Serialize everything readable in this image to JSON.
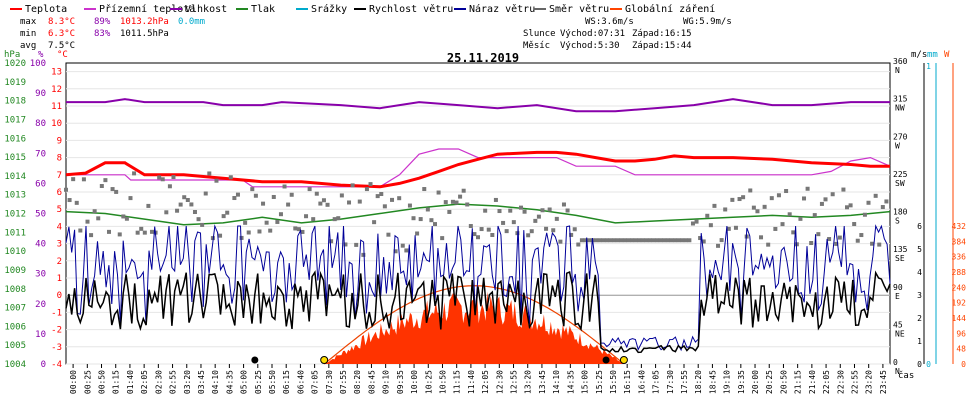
{
  "chart_data": {
    "type": "line",
    "title": "25.11.2019",
    "x_axis_label": "čas",
    "legend": [
      {
        "name": "Teplota",
        "color": "#ff0000"
      },
      {
        "name": "Přízemní teplota",
        "color": "#cc33cc"
      },
      {
        "name": "Vlhkost",
        "color": "#8800aa"
      },
      {
        "name": "Tlak",
        "color": "#228822"
      },
      {
        "name": "Srážky",
        "color": "#00aacc"
      },
      {
        "name": "Rychlost větru",
        "color": "#000000"
      },
      {
        "name": "Náraz větru",
        "color": "#000099"
      },
      {
        "name": "Směr větru",
        "color": "#666666"
      },
      {
        "name": "Globální záření",
        "color": "#ff4400"
      }
    ],
    "stats": {
      "max": {
        "label": "max",
        "temp": "8.3°C",
        "hum": "89%",
        "press": "1013.2hPa",
        "rain": "0.0mm"
      },
      "min": {
        "label": "min",
        "temp": "6.3°C",
        "hum": "83%",
        "press": "1011.5hPa"
      },
      "avg": {
        "label": "avg",
        "temp": "7.5°C"
      }
    },
    "wind_info": {
      "ws": "WS:3.6m/s",
      "wg": "WG:5.9m/s"
    },
    "sun": {
      "label": "Slunce",
      "rise": "Východ:07:31",
      "set": "Západ:16:15"
    },
    "moon": {
      "label": "Měsíc",
      "rise": "Východ:5:30",
      "set": "Západ:15:44"
    },
    "axis_units": {
      "hpa": "hPa",
      "pct": "%",
      "degc": "°C",
      "ms": "m/s",
      "mm": "mm",
      "w": "W"
    },
    "hpa_ticks": [
      "1020",
      "1019",
      "1018",
      "1017",
      "1016",
      "1015",
      "1014",
      "1013",
      "1012",
      "1011",
      "1010",
      "1009",
      "1008",
      "1007",
      "1006",
      "1005",
      "1004"
    ],
    "pct_ticks": [
      "100",
      "90",
      "80",
      "70",
      "60",
      "50",
      "40",
      "30",
      "20",
      "10",
      "0"
    ],
    "temp_ticks": [
      "13",
      "12",
      "11",
      "10",
      "9",
      "8",
      "7",
      "6",
      "5",
      "4",
      "3",
      "2",
      "1",
      "0",
      "-1",
      "-2",
      "-3",
      "-4"
    ],
    "wind_dir_ticks": [
      {
        "deg": "360",
        "dir": "N"
      },
      {
        "deg": "315",
        "dir": "NW"
      },
      {
        "deg": "270",
        "dir": "W"
      },
      {
        "deg": "225",
        "dir": "SW"
      },
      {
        "deg": "180",
        "dir": "S"
      },
      {
        "deg": "135",
        "dir": "SE"
      },
      {
        "deg": "90",
        "dir": "E"
      },
      {
        "deg": "45",
        "dir": "NE"
      },
      {
        "deg": "0",
        "dir": "N"
      }
    ],
    "ms_ticks": [
      "6",
      "5",
      "4",
      "3",
      "2",
      "1",
      "0"
    ],
    "mm_ticks": [
      "1",
      "0"
    ],
    "w_ticks": [
      "432",
      "384",
      "336",
      "288",
      "240",
      "192",
      "144",
      "96",
      "48",
      "0"
    ],
    "x_ticks": [
      "00:00",
      "00:25",
      "00:50",
      "01:15",
      "01:40",
      "02:05",
      "02:30",
      "02:55",
      "03:20",
      "03:45",
      "04:10",
      "04:35",
      "05:00",
      "05:25",
      "05:50",
      "06:15",
      "06:40",
      "07:05",
      "07:30",
      "07:55",
      "08:20",
      "08:45",
      "09:10",
      "09:35",
      "10:00",
      "10:25",
      "10:50",
      "11:15",
      "11:40",
      "12:05",
      "12:30",
      "12:55",
      "13:20",
      "13:45",
      "14:10",
      "14:35",
      "15:00",
      "15:25",
      "15:50",
      "16:15",
      "16:40",
      "17:05",
      "17:30",
      "17:55",
      "18:20",
      "18:45",
      "19:10",
      "19:35",
      "20:00",
      "20:25",
      "20:50",
      "21:15",
      "21:40",
      "22:05",
      "22:30",
      "22:55",
      "23:20",
      "23:45"
    ],
    "series": {
      "teplota": [
        [
          0,
          7
        ],
        [
          1,
          7.1
        ],
        [
          2,
          7.7
        ],
        [
          3,
          7.7
        ],
        [
          4,
          7.0
        ],
        [
          6,
          7.0
        ],
        [
          8,
          6.8
        ],
        [
          10,
          6.6
        ],
        [
          12,
          6.6
        ],
        [
          14,
          6.4
        ],
        [
          16,
          6.3
        ],
        [
          17,
          6.5
        ],
        [
          18,
          6.8
        ],
        [
          19,
          7.2
        ],
        [
          20,
          7.6
        ],
        [
          21,
          7.9
        ],
        [
          22,
          8.2
        ],
        [
          24,
          8.3
        ],
        [
          25,
          8.3
        ],
        [
          26,
          8.2
        ],
        [
          27,
          8.0
        ],
        [
          28,
          7.8
        ],
        [
          29,
          7.8
        ],
        [
          30,
          7.9
        ],
        [
          31,
          8.1
        ],
        [
          32,
          8.0
        ],
        [
          34,
          8.0
        ],
        [
          36,
          7.9
        ],
        [
          38,
          7.7
        ],
        [
          40,
          7.6
        ],
        [
          41,
          7.5
        ],
        [
          42,
          7.5
        ]
      ],
      "prizemni": [
        [
          0,
          7
        ],
        [
          3,
          7
        ],
        [
          3.3,
          6.7
        ],
        [
          9,
          6.7
        ],
        [
          9.5,
          6.3
        ],
        [
          14,
          6.3
        ],
        [
          16,
          6.3
        ],
        [
          17,
          7.0
        ],
        [
          18,
          8.2
        ],
        [
          19,
          8.5
        ],
        [
          20,
          8.5
        ],
        [
          21,
          8.0
        ],
        [
          22,
          8.0
        ],
        [
          24,
          8.0
        ],
        [
          25,
          8.0
        ],
        [
          26,
          7.5
        ],
        [
          28,
          7.5
        ],
        [
          29,
          7.0
        ],
        [
          32,
          7.0
        ],
        [
          36,
          7.0
        ],
        [
          38,
          7.0
        ],
        [
          39,
          7.2
        ],
        [
          40,
          7.8
        ],
        [
          41,
          8.0
        ],
        [
          42,
          7.5
        ]
      ],
      "vlhkost": [
        [
          0,
          87
        ],
        [
          2,
          87
        ],
        [
          3,
          88
        ],
        [
          4,
          87
        ],
        [
          7,
          87
        ],
        [
          8,
          86
        ],
        [
          10,
          86
        ],
        [
          11,
          87
        ],
        [
          14,
          86
        ],
        [
          16,
          85
        ],
        [
          17,
          86
        ],
        [
          18,
          87
        ],
        [
          20,
          86
        ],
        [
          22,
          85
        ],
        [
          24,
          86
        ],
        [
          26,
          84
        ],
        [
          28,
          84
        ],
        [
          30,
          85
        ],
        [
          32,
          86
        ],
        [
          33,
          87
        ],
        [
          34,
          88
        ],
        [
          36,
          86
        ],
        [
          38,
          86
        ],
        [
          40,
          87
        ],
        [
          42,
          87
        ]
      ],
      "tlak": [
        [
          0,
          1012.1
        ],
        [
          2,
          1012.0
        ],
        [
          4,
          1011.7
        ],
        [
          6,
          1011.4
        ],
        [
          8,
          1011.5
        ],
        [
          10,
          1011.8
        ],
        [
          12,
          1011.5
        ],
        [
          14,
          1011.7
        ],
        [
          16,
          1012.0
        ],
        [
          18,
          1012.3
        ],
        [
          20,
          1012.5
        ],
        [
          22,
          1012.4
        ],
        [
          24,
          1012.2
        ],
        [
          26,
          1011.9
        ],
        [
          28,
          1011.5
        ],
        [
          30,
          1011.6
        ],
        [
          32,
          1011.7
        ],
        [
          34,
          1011.8
        ],
        [
          36,
          1011.9
        ],
        [
          38,
          1011.8
        ],
        [
          40,
          1011.9
        ],
        [
          42,
          1012.1
        ]
      ],
      "vitr_range": [
        0,
        6
      ],
      "radiation_peak": 230
    }
  }
}
